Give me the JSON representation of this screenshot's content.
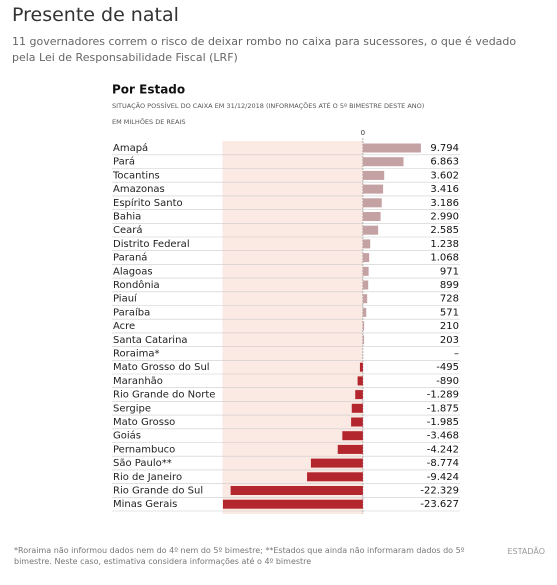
{
  "title": "Presente de natal",
  "subtitle": "11 governadores correm o risco de deixar rombo no caixa para sucessores, o que é vedado pela Lei de Responsabilidade Fiscal (LRF)",
  "footnote": "*Roraima não informou dados nem do 4º nem do 5º bimestre; **Estados que ainda não informaram dados do 5º bimestre. Neste caso, estimativa considera informações até o 4º bimestre",
  "source": "ESTADÃO",
  "chart_data": {
    "type": "bar",
    "orientation": "horizontal",
    "title": "Por Estado",
    "subtitle": "SITUAÇÃO POSSÍVEL DO CAIXA EM 31/12/2018 (INFORMAÇÕES ATÉ O 5º BIMESTRE DESTE ANO)",
    "unit_label": "EM MILHÕES DE REAIS",
    "categories": [
      "Amapá",
      "Pará",
      "Tocantins",
      "Amazonas",
      "Espírito Santo",
      "Bahia",
      "Ceará",
      "Distrito Federal",
      "Paraná",
      "Alagoas",
      "Rondônia",
      "Piauí",
      "Paraíba",
      "Acre",
      "Santa Catarina",
      "Roraima*",
      "Mato Grosso do Sul",
      "Maranhão",
      "Rio Grande do Norte",
      "Sergipe",
      "Mato Grosso",
      "Goiás",
      "Pernambuco",
      "São Paulo**",
      "Rio de Janeiro",
      "Rio Grande do Sul",
      "Minas Gerais"
    ],
    "values": [
      9794,
      6863,
      3602,
      3416,
      3186,
      2990,
      2585,
      1238,
      1068,
      971,
      899,
      728,
      571,
      210,
      203,
      null,
      -495,
      -890,
      -1289,
      -1875,
      -1985,
      -3468,
      -4242,
      -8774,
      -9424,
      -22329,
      -23627
    ],
    "value_labels": [
      "9.794",
      "6.863",
      "3.602",
      "3.416",
      "3.186",
      "2.990",
      "2.585",
      "1.238",
      "1.068",
      "971",
      "899",
      "728",
      "571",
      "210",
      "203",
      "–",
      "-495",
      "-890",
      "-1.289",
      "-1.875",
      "-1.985",
      "-3.468",
      "-4.242",
      "-8.774",
      "-9.424",
      "-22.329",
      "-23.627"
    ],
    "color": "#c4a1a3",
    "negative_color": "#b3262d",
    "negative_background": "#fbe9e3",
    "xlim": [
      -23700,
      9900
    ],
    "xticks": [
      0
    ]
  }
}
